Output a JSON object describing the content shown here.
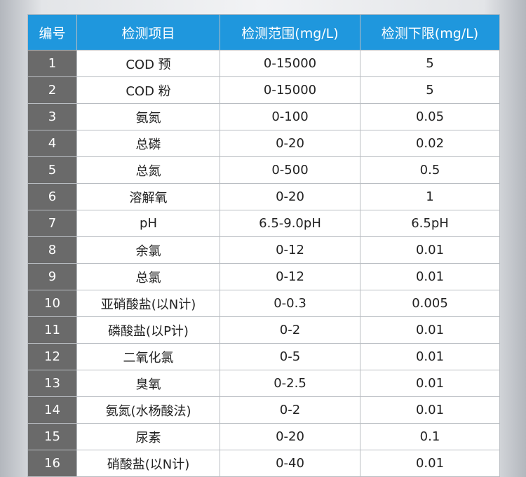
{
  "table": {
    "headers": [
      "编号",
      "检测项目",
      "检测范围(mg/L)",
      "检测下限(mg/L)"
    ],
    "rows": [
      [
        "1",
        "COD 预",
        "0-15000",
        "5"
      ],
      [
        "2",
        "COD 粉",
        "0-15000",
        "5"
      ],
      [
        "3",
        "氨氮",
        "0-100",
        "0.05"
      ],
      [
        "4",
        "总磷",
        "0-20",
        "0.02"
      ],
      [
        "5",
        "总氮",
        "0-500",
        "0.5"
      ],
      [
        "6",
        "溶解氧",
        "0-20",
        "1"
      ],
      [
        "7",
        "pH",
        "6.5-9.0pH",
        "6.5pH"
      ],
      [
        "8",
        "余氯",
        "0-12",
        "0.01"
      ],
      [
        "9",
        "总氯",
        "0-12",
        "0.01"
      ],
      [
        "10",
        "亚硝酸盐(以N计)",
        "0-0.3",
        "0.005"
      ],
      [
        "11",
        "磷酸盐(以P计)",
        "0-2",
        "0.01"
      ],
      [
        "12",
        "二氧化氯",
        "0-5",
        "0.01"
      ],
      [
        "13",
        "臭氧",
        "0-2.5",
        "0.01"
      ],
      [
        "14",
        "氨氮(水杨酸法)",
        "0-2",
        "0.01"
      ],
      [
        "15",
        "尿素",
        "0-20",
        "0.1"
      ],
      [
        "16",
        "硝酸盐(以N计)",
        "0-40",
        "0.01"
      ]
    ]
  },
  "colors": {
    "header_bg": "#1f97dd",
    "number_cell_bg": "#6a6a6a",
    "cell_bg": "#ffffff",
    "border": "#b9bdc2"
  }
}
